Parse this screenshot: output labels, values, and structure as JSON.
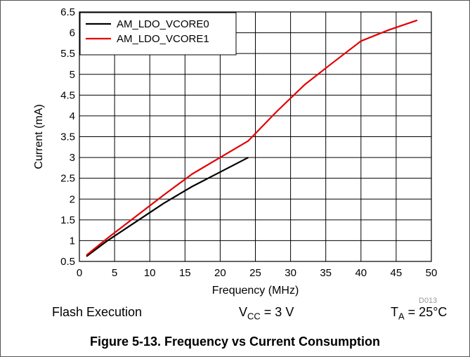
{
  "chart_data": {
    "type": "line",
    "xlabel": "Frequency (MHz)",
    "ylabel": "Current (mA)",
    "xlim": [
      0,
      50
    ],
    "ylim": [
      0.5,
      6.5
    ],
    "x_ticks": [
      "0",
      "5",
      "10",
      "15",
      "20",
      "25",
      "30",
      "35",
      "40",
      "45",
      "50"
    ],
    "y_ticks": [
      "0.5",
      "1",
      "1.5",
      "2",
      "2.5",
      "3",
      "3.5",
      "4",
      "4.5",
      "5",
      "5.5",
      "6",
      "6.5"
    ],
    "grid": true,
    "legend_position": "top-left",
    "series": [
      {
        "name": "AM_LDO_VCORE0",
        "color": "#000000",
        "x": [
          1,
          4,
          8,
          12,
          16,
          20,
          24
        ],
        "y": [
          0.62,
          1.0,
          1.45,
          1.9,
          2.3,
          2.65,
          3.0
        ]
      },
      {
        "name": "AM_LDO_VCORE1",
        "color": "#e30000",
        "x": [
          1,
          4,
          8,
          12,
          16,
          20,
          24,
          28,
          32,
          36,
          40,
          44,
          48
        ],
        "y": [
          0.65,
          1.06,
          1.58,
          2.1,
          2.6,
          3.0,
          3.4,
          4.1,
          4.75,
          5.28,
          5.8,
          6.07,
          6.3
        ]
      }
    ]
  },
  "figure_code": "D013",
  "conditions": {
    "left": "Flash Execution",
    "vcc_main": "V",
    "vcc_sub": "CC",
    "vcc_rest": " = 3 V",
    "ta_main": "T",
    "ta_sub": "A",
    "ta_rest": " = 25°C"
  },
  "caption": "Figure 5-13. Frequency vs Current Consumption"
}
